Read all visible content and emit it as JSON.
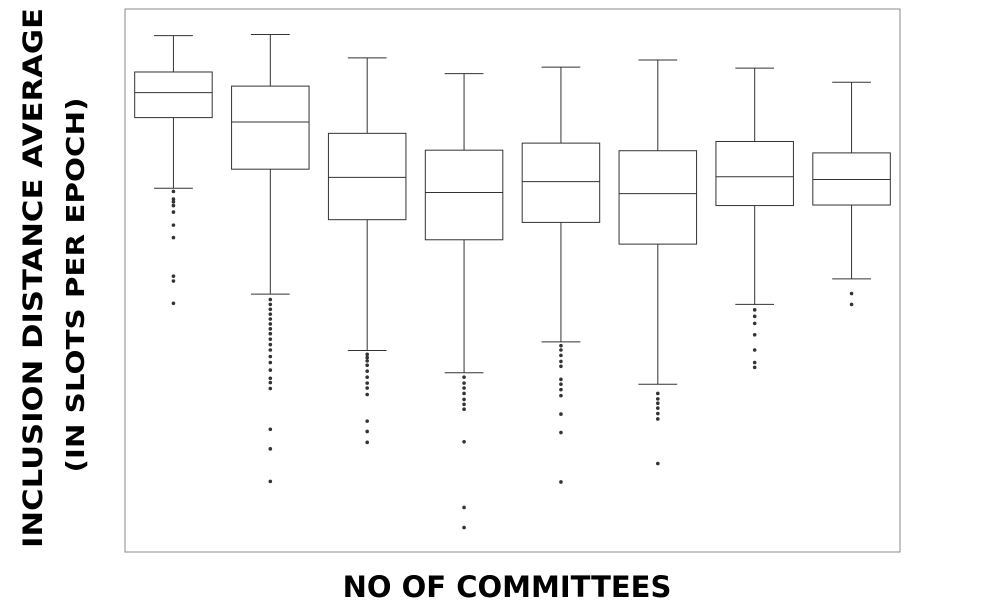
{
  "chart_data": {
    "type": "box",
    "xlabel": "NO OF COMMITTEES",
    "ylabel_line1": "INCLUSION DISTANCE AVERAGE",
    "ylabel_line2": "(IN SLOTS PER EPOCH)",
    "grid": false,
    "legend": "none",
    "ylim": [
      0,
      100
    ],
    "boxes": [
      {
        "q1": 80.0,
        "median": 84.6,
        "q3": 88.4,
        "whisker_low": 67.0,
        "whisker_high": 95.1,
        "outliers": [
          66.4,
          65.0,
          64.5,
          63.8,
          62.6,
          60.2,
          57.9,
          50.8,
          49.9,
          45.8
        ]
      },
      {
        "q1": 70.5,
        "median": 79.2,
        "q3": 85.8,
        "whisker_low": 47.5,
        "whisker_high": 95.3,
        "outliers": [
          46.5,
          45.6,
          44.7,
          43.8,
          42.9,
          42.0,
          41.1,
          40.2,
          39.2,
          38.2,
          37.2,
          36.0,
          34.9,
          33.5,
          32.0,
          31.2,
          30.1,
          22.6,
          19.0,
          13.0
        ]
      },
      {
        "q1": 61.2,
        "median": 69.0,
        "q3": 77.1,
        "whisker_low": 37.1,
        "whisker_high": 91.0,
        "outliers": [
          36.4,
          35.8,
          35.2,
          34.4,
          33.3,
          32.2,
          31.1,
          30.2,
          29.0,
          24.1,
          22.2,
          20.2
        ]
      },
      {
        "q1": 57.5,
        "median": 66.2,
        "q3": 74.0,
        "whisker_low": 33.0,
        "whisker_high": 88.1,
        "outliers": [
          32.2,
          31.1,
          30.2,
          29.2,
          28.1,
          27.2,
          26.3,
          20.3,
          8.2,
          4.5
        ]
      },
      {
        "q1": 60.7,
        "median": 68.2,
        "q3": 75.3,
        "whisker_low": 38.7,
        "whisker_high": 89.3,
        "outliers": [
          38.0,
          37.2,
          36.2,
          35.1,
          34.2,
          31.8,
          30.9,
          29.9,
          28.8,
          25.4,
          22.0,
          12.9
        ]
      },
      {
        "q1": 56.7,
        "median": 66.0,
        "q3": 73.9,
        "whisker_low": 30.9,
        "whisker_high": 90.6,
        "outliers": [
          29.2,
          28.2,
          27.4,
          26.5,
          25.5,
          24.5,
          16.3
        ]
      },
      {
        "q1": 63.8,
        "median": 69.1,
        "q3": 75.6,
        "whisker_low": 45.6,
        "whisker_high": 89.1,
        "outliers": [
          44.6,
          43.4,
          42.1,
          40.0,
          37.2,
          34.9,
          34.0
        ]
      },
      {
        "q1": 63.9,
        "median": 68.6,
        "q3": 73.5,
        "whisker_low": 50.3,
        "whisker_high": 86.5,
        "outliers": [
          47.6,
          45.6
        ]
      }
    ]
  }
}
